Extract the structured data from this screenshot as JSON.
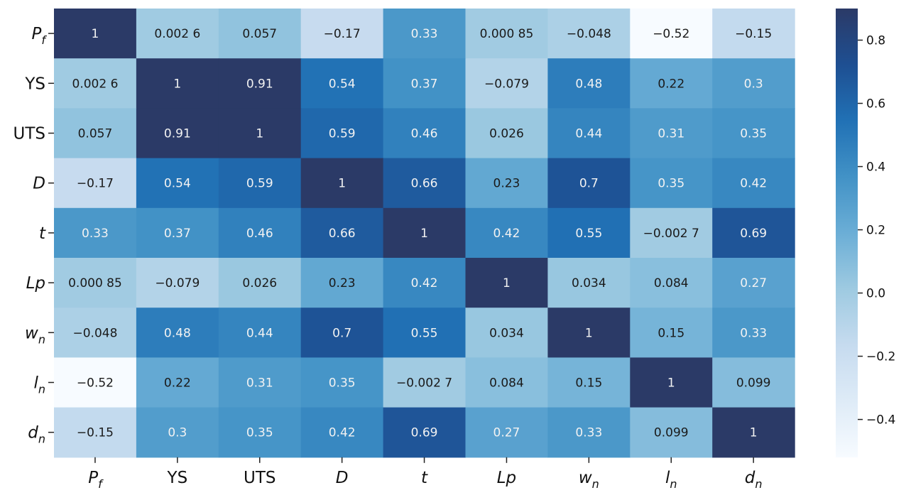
{
  "chart_data": {
    "type": "heatmap",
    "title": "",
    "rows": [
      {
        "label": "P",
        "sub": "f",
        "italic": true
      },
      {
        "label": "YS",
        "sub": "",
        "italic": false
      },
      {
        "label": "UTS",
        "sub": "",
        "italic": false
      },
      {
        "label": "D",
        "sub": "",
        "italic": true
      },
      {
        "label": "t",
        "sub": "",
        "italic": true
      },
      {
        "label": "Lp",
        "sub": "",
        "italic": true
      },
      {
        "label": "w",
        "sub": "n",
        "italic": true
      },
      {
        "label": "l",
        "sub": "n",
        "italic": true
      },
      {
        "label": "d",
        "sub": "n",
        "italic": true
      }
    ],
    "columns": [
      {
        "label": "P",
        "sub": "f",
        "italic": true
      },
      {
        "label": "YS",
        "sub": "",
        "italic": false
      },
      {
        "label": "UTS",
        "sub": "",
        "italic": false
      },
      {
        "label": "D",
        "sub": "",
        "italic": true
      },
      {
        "label": "t",
        "sub": "",
        "italic": true
      },
      {
        "label": "Lp",
        "sub": "",
        "italic": true
      },
      {
        "label": "w",
        "sub": "n",
        "italic": true
      },
      {
        "label": "l",
        "sub": "n",
        "italic": true
      },
      {
        "label": "d",
        "sub": "n",
        "italic": true
      }
    ],
    "values": [
      [
        1,
        0.0026,
        0.057,
        -0.17,
        0.33,
        0.00085,
        -0.048,
        -0.52,
        -0.15
      ],
      [
        0.0026,
        1,
        0.91,
        0.54,
        0.37,
        -0.079,
        0.48,
        0.22,
        0.3
      ],
      [
        0.057,
        0.91,
        1,
        0.59,
        0.46,
        0.026,
        0.44,
        0.31,
        0.35
      ],
      [
        -0.17,
        0.54,
        0.59,
        1,
        0.66,
        0.23,
        0.7,
        0.35,
        0.42
      ],
      [
        0.33,
        0.37,
        0.46,
        0.66,
        1,
        0.42,
        0.55,
        -0.0027,
        0.69
      ],
      [
        0.00085,
        -0.079,
        0.026,
        0.23,
        0.42,
        1,
        0.034,
        0.084,
        0.27
      ],
      [
        -0.048,
        0.48,
        0.44,
        0.7,
        0.55,
        0.034,
        1,
        0.15,
        0.33
      ],
      [
        -0.52,
        0.22,
        0.31,
        0.35,
        -0.0027,
        0.084,
        0.15,
        1,
        0.099
      ],
      [
        -0.15,
        0.3,
        0.35,
        0.42,
        0.69,
        0.27,
        0.33,
        0.099,
        1
      ]
    ],
    "annotations": [
      [
        "1",
        "0.002 6",
        "0.057",
        "−0.17",
        "0.33",
        "0.000 85",
        "−0.048",
        "−0.52",
        "−0.15"
      ],
      [
        "0.002 6",
        "1",
        "0.91",
        "0.54",
        "0.37",
        "−0.079",
        "0.48",
        "0.22",
        "0.3"
      ],
      [
        "0.057",
        "0.91",
        "1",
        "0.59",
        "0.46",
        "0.026",
        "0.44",
        "0.31",
        "0.35"
      ],
      [
        "−0.17",
        "0.54",
        "0.59",
        "1",
        "0.66",
        "0.23",
        "0.7",
        "0.35",
        "0.42"
      ],
      [
        "0.33",
        "0.37",
        "0.46",
        "0.66",
        "1",
        "0.42",
        "0.55",
        "−0.002 7",
        "0.69"
      ],
      [
        "0.000 85",
        "−0.079",
        "0.026",
        "0.23",
        "0.42",
        "1",
        "0.034",
        "0.084",
        "0.27"
      ],
      [
        "−0.048",
        "0.48",
        "0.44",
        "0.7",
        "0.55",
        "0.034",
        "1",
        "0.15",
        "0.33"
      ],
      [
        "−0.52",
        "0.22",
        "0.31",
        "0.35",
        "−0.002 7",
        "0.084",
        "0.15",
        "1",
        "0.099"
      ],
      [
        "−0.15",
        "0.3",
        "0.35",
        "0.42",
        "0.69",
        "0.27",
        "0.33",
        "0.099",
        "1"
      ]
    ],
    "colorbar": {
      "vmin": -0.52,
      "vmax": 0.9,
      "ticks": [
        0.8,
        0.6,
        0.4,
        0.2,
        0.0,
        -0.2,
        -0.4
      ],
      "tick_labels": [
        "0.8",
        "0.6",
        "0.4",
        "0.2",
        "0.0",
        "−0.2",
        "−0.4"
      ],
      "colormap": "Blues",
      "stops": [
        "#f7fbff",
        "#deebf7",
        "#c6dbef",
        "#9ecae1",
        "#6baed6",
        "#4292c6",
        "#2171b5",
        "#1e4f92",
        "#2b3a67"
      ]
    }
  }
}
